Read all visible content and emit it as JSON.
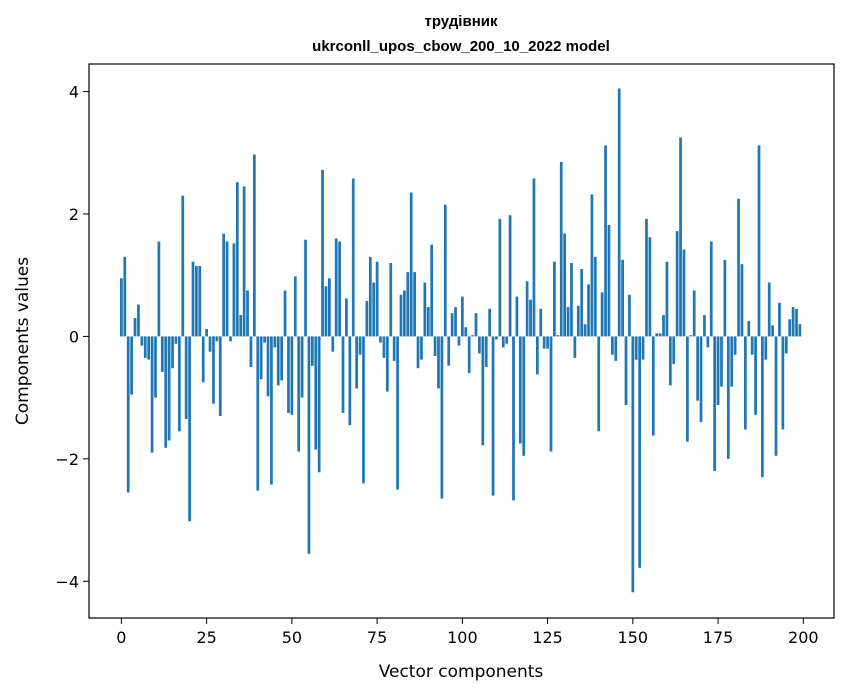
{
  "chart_data": {
    "type": "bar",
    "title_line1": "трудівник",
    "title_line2": "ukrconll_upos_cbow_200_10_2022 model",
    "xlabel": "Vector components",
    "ylabel": "Components values",
    "xlim": [
      -9.5,
      209.0
    ],
    "ylim": [
      -4.6,
      4.45
    ],
    "xticks": [
      0,
      25,
      50,
      75,
      100,
      125,
      150,
      175,
      200
    ],
    "yticks": [
      -4,
      -2,
      0,
      2,
      4
    ],
    "ytick_labels": [
      "−4",
      "−2",
      "0",
      "2",
      "4"
    ],
    "color": "#1f77b4",
    "values": [
      0.95,
      1.3,
      -2.55,
      -0.95,
      0.3,
      0.52,
      -0.15,
      -0.35,
      -0.38,
      -1.9,
      -1.0,
      1.55,
      -0.58,
      -1.82,
      -1.7,
      -0.52,
      -0.12,
      -1.55,
      2.3,
      -1.35,
      -3.02,
      1.22,
      1.15,
      1.15,
      -0.75,
      0.12,
      -0.25,
      -1.1,
      -0.08,
      -1.3,
      1.68,
      1.55,
      -0.08,
      1.52,
      2.52,
      0.35,
      2.45,
      0.75,
      -0.5,
      2.97,
      -2.52,
      -0.7,
      -0.1,
      -0.98,
      -2.42,
      -0.18,
      -0.8,
      -0.72,
      0.75,
      -1.25,
      -1.28,
      0.98,
      -1.88,
      -1.0,
      1.58,
      -3.55,
      -0.48,
      -1.85,
      -2.22,
      2.72,
      0.82,
      0.95,
      -0.25,
      1.6,
      1.55,
      -1.25,
      0.62,
      -1.45,
      2.58,
      -0.85,
      -0.3,
      -2.4,
      0.58,
      1.3,
      0.88,
      1.22,
      -0.1,
      -0.35,
      -0.9,
      1.2,
      -0.4,
      -2.5,
      0.68,
      0.75,
      1.05,
      2.35,
      1.05,
      -0.52,
      -0.38,
      0.88,
      0.48,
      1.5,
      -0.32,
      -0.85,
      -2.65,
      2.15,
      -0.48,
      0.38,
      0.48,
      -0.15,
      0.65,
      0.15,
      -0.6,
      0.02,
      0.38,
      -0.28,
      -1.78,
      -0.5,
      0.45,
      -2.6,
      -0.05,
      1.92,
      -0.18,
      -0.12,
      1.98,
      -2.68,
      0.65,
      -1.75,
      -1.95,
      0.9,
      0.6,
      2.58,
      -0.62,
      0.45,
      -0.2,
      -0.2,
      -1.88,
      1.22,
      0.02,
      2.85,
      1.68,
      0.48,
      1.2,
      -0.35,
      0.5,
      1.1,
      0.2,
      0.85,
      2.32,
      1.3,
      -1.55,
      0.72,
      3.12,
      1.82,
      -0.3,
      -0.4,
      4.05,
      1.25,
      -1.12,
      0.68,
      -4.18,
      -0.38,
      -3.78,
      -0.38,
      1.92,
      1.62,
      -1.62,
      0.05,
      0.05,
      0.35,
      1.22,
      -0.8,
      -0.45,
      1.72,
      3.25,
      1.42,
      -1.72,
      0.02,
      0.75,
      -1.05,
      -1.4,
      0.35,
      -0.18,
      1.55,
      -2.2,
      -1.12,
      -0.82,
      1.25,
      -2.0,
      -0.82,
      -0.3,
      2.25,
      1.18,
      -1.52,
      0.25,
      -0.3,
      -1.28,
      3.12,
      -2.3,
      -0.38,
      0.88,
      0.18,
      -1.95,
      0.55,
      -1.52,
      -0.28,
      0.28,
      0.48,
      0.45,
      0.2
    ]
  }
}
